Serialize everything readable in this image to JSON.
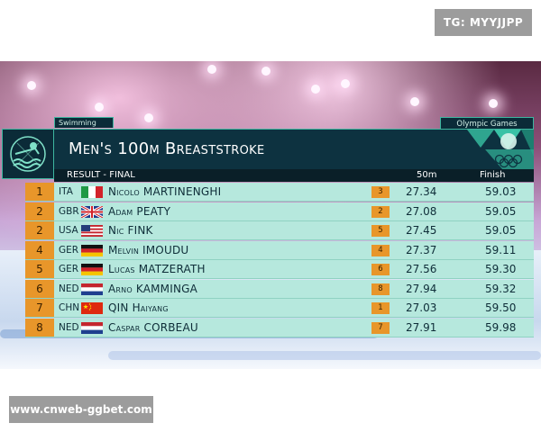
{
  "watermarks": {
    "top_right": "TG: MYYJJPP",
    "bottom_left": "www.cnweb-ggbet.com"
  },
  "broadcast": {
    "sport_tag": "Swimming",
    "games_tag": "Olympic Games",
    "event_title": "Men's 100m Breaststroke",
    "header": {
      "result_label": "RESULT - FINAL",
      "split_label": "50m",
      "finish_label": "Finish"
    },
    "results": [
      {
        "rank": "1",
        "nation": "ITA",
        "name": "Nicolo MARTINENGHI",
        "lane": "3",
        "split": "27.34",
        "finish": "59.03",
        "flag": "ITA"
      },
      {
        "rank": "2",
        "nation": "GBR",
        "name": "Adam PEATY",
        "lane": "2",
        "split": "27.08",
        "finish": "59.05",
        "flag": "GBR"
      },
      {
        "rank": "2",
        "nation": "USA",
        "name": "Nic FINK",
        "lane": "5",
        "split": "27.45",
        "finish": "59.05",
        "flag": "USA"
      },
      {
        "rank": "4",
        "nation": "GER",
        "name": "Melvin IMOUDU",
        "lane": "4",
        "split": "27.37",
        "finish": "59.11",
        "flag": "GER"
      },
      {
        "rank": "5",
        "nation": "GER",
        "name": "Lucas MATZERATH",
        "lane": "6",
        "split": "27.56",
        "finish": "59.30",
        "flag": "GER"
      },
      {
        "rank": "6",
        "nation": "NED",
        "name": "Arno KAMMINGA",
        "lane": "8",
        "split": "27.94",
        "finish": "59.32",
        "flag": "NED"
      },
      {
        "rank": "7",
        "nation": "CHN",
        "name": "QIN Haiyang",
        "lane": "1",
        "split": "27.03",
        "finish": "59.50",
        "flag": "CHN"
      },
      {
        "rank": "8",
        "nation": "NED",
        "name": "Caspar CORBEAU",
        "lane": "7",
        "split": "27.91",
        "finish": "59.98",
        "flag": "NED"
      }
    ],
    "colors": {
      "accent_orange": "#e8962a",
      "row_teal": "#b6e8dd",
      "panel_dark": "#0d3240",
      "border_teal": "#3db6a0"
    }
  }
}
